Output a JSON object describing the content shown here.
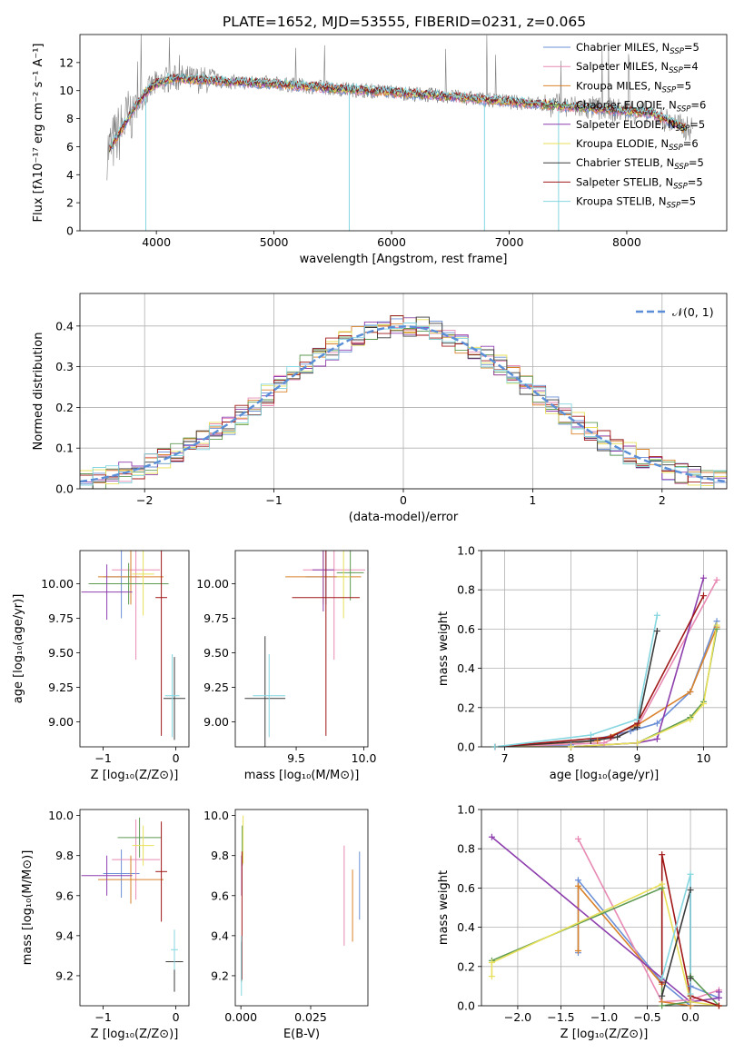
{
  "title": "PLATE=1652, MJD=53555, FIBERID=0231, z=0.065",
  "colors": [
    "#6b8fd6",
    "#e88ab4",
    "#d9822b",
    "#5e9a52",
    "#8e3fae",
    "#e8e05a",
    "#3b3b3b",
    "#a01818",
    "#85d6e0"
  ],
  "chart_data": [
    {
      "id": "spectrum",
      "type": "line",
      "xlabel": "wavelength [Angstrom, rest frame]",
      "ylabel": "Flux [fλ10⁻¹⁷ erg cm⁻² s⁻¹ A⁻¹]",
      "xlim": [
        3350,
        8850
      ],
      "ylim": [
        0,
        14
      ],
      "xticks": [
        4000,
        5000,
        6000,
        7000,
        8000
      ],
      "yticks": [
        0,
        2,
        4,
        6,
        8,
        10,
        12
      ],
      "grid": false,
      "legend": "top-right",
      "legend_entries": [
        {
          "text": "Chabrier MILES, N",
          "sub": "SSP",
          "tail": "=5"
        },
        {
          "text": "Salpeter MILES, N",
          "sub": "SSP",
          "tail": "=4"
        },
        {
          "text": "Kroupa MILES, N",
          "sub": "SSP",
          "tail": "=5"
        },
        {
          "text": "Chabrier ELODIE, N",
          "sub": "SSP",
          "tail": "=6"
        },
        {
          "text": "Salpeter ELODIE, N",
          "sub": "SSP",
          "tail": "=5"
        },
        {
          "text": "Kroupa ELODIE, N",
          "sub": "SSP",
          "tail": "=6"
        },
        {
          "text": "Chabrier STELIB, N",
          "sub": "SSP",
          "tail": "=5"
        },
        {
          "text": "Salpeter STELIB, N",
          "sub": "SSP",
          "tail": "=5"
        },
        {
          "text": "Kroupa STELIB, N",
          "sub": "SSP",
          "tail": "=5"
        }
      ],
      "continuum_x": [
        3600,
        3700,
        3800,
        3900,
        4000,
        4100,
        4200,
        4300,
        4500,
        4700,
        5000,
        5300,
        5600,
        6000,
        6300,
        6600,
        7000,
        7300,
        7600,
        7900,
        8200,
        8500
      ],
      "continuum_y": [
        5.8,
        7.2,
        8.6,
        9.8,
        10.5,
        10.8,
        10.9,
        10.8,
        10.7,
        10.6,
        10.5,
        10.3,
        10.1,
        9.9,
        9.7,
        9.5,
        9.2,
        9.0,
        8.8,
        8.6,
        8.4,
        7.3
      ],
      "spikes": [
        {
          "x": 3910,
          "y": 0
        },
        {
          "x": 5640,
          "y": 0
        },
        {
          "x": 6790,
          "y": 0
        },
        {
          "x": 7420,
          "y": 0
        }
      ]
    },
    {
      "id": "residual-hist",
      "type": "line",
      "xlabel": "(data-model)/error",
      "ylabel": "Normed distribution",
      "xlim": [
        -2.5,
        2.5
      ],
      "ylim": [
        0,
        0.48
      ],
      "xticks": [
        -2,
        -1,
        0,
        1,
        2
      ],
      "yticks": [
        0.0,
        0.1,
        0.2,
        0.3,
        0.4
      ],
      "grid": true,
      "legend": "top-right",
      "legend_label": "𝒩(0, 1)",
      "gaussian": {
        "mean": 0,
        "sigma": 1
      }
    },
    {
      "id": "age-vs-Z",
      "type": "scatter",
      "xlabel": "Z [log₁₀(Z/Z⊙)]",
      "ylabel": "age  [log₁₀(age/yr)]",
      "xlim": [
        -1.32,
        0.18
      ],
      "ylim": [
        8.82,
        10.24
      ],
      "xticks": [
        -1,
        0
      ],
      "yticks": [
        9.0,
        9.25,
        9.5,
        9.75,
        10.0
      ],
      "grid": false,
      "points": [
        {
          "c": 0,
          "x": -0.75,
          "y": 10.05,
          "xe": 0.25,
          "ye": 0.3
        },
        {
          "c": 1,
          "x": -0.55,
          "y": 10.1,
          "xe": 0.33,
          "ye": 0.65
        },
        {
          "c": 2,
          "x": -0.62,
          "y": 10.05,
          "xe": 0.45,
          "ye": 0.2
        },
        {
          "c": 3,
          "x": -0.65,
          "y": 10.0,
          "xe": 0.55,
          "ye": 0.15
        },
        {
          "c": 4,
          "x": -0.95,
          "y": 9.94,
          "xe": 0.35,
          "ye": 0.2
        },
        {
          "c": 5,
          "x": -0.45,
          "y": 10.07,
          "xe": 0.15,
          "ye": 0.3
        },
        {
          "c": 6,
          "x": -0.02,
          "y": 9.17,
          "xe": 0.15,
          "ye": 0.3
        },
        {
          "c": 7,
          "x": -0.2,
          "y": 9.9,
          "xe": 0.08,
          "ye": 1.0
        },
        {
          "c": 8,
          "x": -0.05,
          "y": 9.19,
          "xe": 0.1,
          "ye": 0.3
        }
      ]
    },
    {
      "id": "age-vs-mass",
      "type": "scatter",
      "xlabel": "mass [log₁₀(M/M⊙)]",
      "ylabel": "",
      "xlim": [
        9.05,
        10.03
      ],
      "ylim": [
        8.82,
        10.24
      ],
      "xticks": [
        9.5,
        10.0
      ],
      "yticks": [
        9.0,
        9.25,
        9.5,
        9.75,
        10.0
      ],
      "grid": false,
      "points": [
        {
          "c": 0,
          "x": 9.72,
          "y": 10.05,
          "xe": 0.15,
          "ye": 0.2
        },
        {
          "c": 1,
          "x": 9.78,
          "y": 10.1,
          "xe": 0.23,
          "ye": 0.65
        },
        {
          "c": 2,
          "x": 9.7,
          "y": 10.05,
          "xe": 0.28,
          "ye": 0.2
        },
        {
          "c": 3,
          "x": 9.9,
          "y": 10.08,
          "xe": 0.1,
          "ye": 0.2
        },
        {
          "c": 4,
          "x": 9.7,
          "y": 10.1,
          "xe": 0.08,
          "ye": 0.3
        },
        {
          "c": 5,
          "x": 9.85,
          "y": 10.05,
          "xe": 0.05,
          "ye": 0.3
        },
        {
          "c": 6,
          "x": 9.27,
          "y": 9.17,
          "xe": 0.15,
          "ye": 0.45
        },
        {
          "c": 7,
          "x": 9.72,
          "y": 9.9,
          "xe": 0.25,
          "ye": 1.0
        },
        {
          "c": 8,
          "x": 9.3,
          "y": 9.19,
          "xe": 0.12,
          "ye": 0.3
        }
      ]
    },
    {
      "id": "weight-vs-age",
      "type": "line",
      "xlabel": "age  [log₁₀(age/yr)]",
      "ylabel": "mass weight",
      "xlim": [
        6.65,
        10.35
      ],
      "ylim": [
        0,
        1.0
      ],
      "xticks": [
        7,
        8,
        9,
        10
      ],
      "yticks": [
        0.0,
        0.2,
        0.4,
        0.6,
        0.8,
        1.0
      ],
      "grid": true,
      "series": [
        {
          "c": 0,
          "x": [
            6.85,
            8.0,
            8.9,
            9.3,
            9.8,
            10.2
          ],
          "y": [
            0.0,
            0.01,
            0.08,
            0.12,
            0.28,
            0.64
          ]
        },
        {
          "c": 1,
          "x": [
            6.85,
            8.5,
            9.0,
            10.2
          ],
          "y": [
            0.0,
            0.02,
            0.1,
            0.85
          ]
        },
        {
          "c": 2,
          "x": [
            6.85,
            8.4,
            9.0,
            9.8,
            10.2
          ],
          "y": [
            0.0,
            0.03,
            0.11,
            0.28,
            0.61
          ]
        },
        {
          "c": 3,
          "x": [
            6.85,
            8.0,
            9.0,
            9.8,
            10.0,
            10.2
          ],
          "y": [
            0.0,
            0.0,
            0.02,
            0.15,
            0.23,
            0.6
          ]
        },
        {
          "c": 4,
          "x": [
            6.85,
            8.0,
            9.0,
            9.3,
            10.0
          ],
          "y": [
            0.0,
            0.0,
            0.02,
            0.04,
            0.86
          ]
        },
        {
          "c": 5,
          "x": [
            6.85,
            8.0,
            9.0,
            9.8,
            10.0,
            10.2
          ],
          "y": [
            0.0,
            0.0,
            0.02,
            0.14,
            0.22,
            0.62
          ]
        },
        {
          "c": 6,
          "x": [
            6.85,
            8.3,
            8.7,
            9.0,
            9.3
          ],
          "y": [
            0.0,
            0.03,
            0.05,
            0.1,
            0.59
          ]
        },
        {
          "c": 7,
          "x": [
            6.85,
            8.6,
            9.0,
            10.0
          ],
          "y": [
            0.0,
            0.05,
            0.12,
            0.77
          ]
        },
        {
          "c": 8,
          "x": [
            6.85,
            8.3,
            9.0,
            9.3
          ],
          "y": [
            0.0,
            0.06,
            0.14,
            0.67
          ]
        }
      ]
    },
    {
      "id": "mass-vs-Z",
      "type": "scatter",
      "xlabel": "Z [log₁₀(Z/Z⊙)]",
      "ylabel": "mass [log₁₀(M/M⊙)]",
      "xlim": [
        -1.32,
        0.18
      ],
      "ylim": [
        9.05,
        10.03
      ],
      "xticks": [
        -1,
        0
      ],
      "yticks": [
        9.2,
        9.4,
        9.6,
        9.8,
        10.0
      ],
      "grid": false,
      "points": [
        {
          "c": 0,
          "x": -0.75,
          "y": 9.71,
          "xe": 0.25,
          "ye": 0.12
        },
        {
          "c": 1,
          "x": -0.55,
          "y": 9.78,
          "xe": 0.33,
          "ye": 0.2
        },
        {
          "c": 2,
          "x": -0.62,
          "y": 9.68,
          "xe": 0.45,
          "ye": 0.12
        },
        {
          "c": 3,
          "x": -0.5,
          "y": 9.89,
          "xe": 0.3,
          "ye": 0.1
        },
        {
          "c": 4,
          "x": -0.95,
          "y": 9.7,
          "xe": 0.35,
          "ye": 0.1
        },
        {
          "c": 5,
          "x": -0.45,
          "y": 9.85,
          "xe": 0.15,
          "ye": 0.1
        },
        {
          "c": 6,
          "x": -0.02,
          "y": 9.27,
          "xe": 0.12,
          "ye": 0.15
        },
        {
          "c": 7,
          "x": -0.2,
          "y": 9.72,
          "xe": 0.08,
          "ye": 0.25
        },
        {
          "c": 8,
          "x": -0.02,
          "y": 9.33,
          "xe": 0.05,
          "ye": 0.1
        }
      ]
    },
    {
      "id": "mass-vs-EBV",
      "type": "scatter",
      "xlabel": "E(B-V)",
      "ylabel": "",
      "xlim": [
        -0.002,
        0.0455
      ],
      "ylim": [
        9.05,
        10.03
      ],
      "xticks": [
        0.0,
        0.025
      ],
      "yticks": [
        9.2,
        9.4,
        9.6,
        9.8,
        10.0
      ],
      "grid": false,
      "points": [
        {
          "c": 0,
          "x": 0.0425,
          "y": 9.65,
          "xe": 0,
          "ye": 0.17
        },
        {
          "c": 1,
          "x": 0.037,
          "y": 9.6,
          "xe": 0,
          "ye": 0.25
        },
        {
          "c": 2,
          "x": 0.04,
          "y": 9.55,
          "xe": 0,
          "ye": 0.18
        },
        {
          "c": 3,
          "x": 0.0005,
          "y": 9.85,
          "xe": 0,
          "ye": 0.1
        },
        {
          "c": 4,
          "x": 0.0003,
          "y": 9.7,
          "xe": 0,
          "ye": 0.1
        },
        {
          "c": 5,
          "x": 0.0008,
          "y": 9.88,
          "xe": 0,
          "ye": 0.12
        },
        {
          "c": 6,
          "x": 0.0002,
          "y": 9.27,
          "xe": 0,
          "ye": 0.1
        },
        {
          "c": 7,
          "x": 0.0004,
          "y": 9.5,
          "xe": 0,
          "ye": 0.32
        },
        {
          "c": 8,
          "x": 0.0002,
          "y": 9.25,
          "xe": 0,
          "ye": 0.15
        }
      ]
    },
    {
      "id": "weight-vs-Z",
      "type": "line",
      "xlabel": "Z [log₁₀(Z/Z⊙)]",
      "ylabel": "mass weight",
      "xlim": [
        -2.42,
        0.42
      ],
      "ylim": [
        0,
        1.0
      ],
      "xticks": [
        -2.0,
        -1.5,
        -1.0,
        -0.5,
        0.0
      ],
      "yticks": [
        0.0,
        0.2,
        0.4,
        0.6,
        0.8,
        1.0
      ],
      "grid": true,
      "series": [
        {
          "c": 0,
          "x": [
            -1.3,
            -1.3,
            -0.33,
            0.0,
            0.0,
            0.33
          ],
          "y": [
            0.27,
            0.64,
            0.12,
            0.0,
            0.1,
            0.04
          ]
        },
        {
          "c": 1,
          "x": [
            -1.3,
            -0.33,
            0.0,
            0.33
          ],
          "y": [
            0.85,
            0.02,
            0.03,
            0.08
          ]
        },
        {
          "c": 2,
          "x": [
            -1.3,
            -1.3,
            -0.33,
            -0.33,
            0.0,
            0.33
          ],
          "y": [
            0.28,
            0.61,
            0.11,
            0.02,
            0.0,
            0.0
          ]
        },
        {
          "c": 3,
          "x": [
            -2.3,
            -0.33,
            -0.33,
            0.0,
            0.0,
            0.33
          ],
          "y": [
            0.23,
            0.6,
            0.0,
            0.02,
            0.15,
            0.0
          ]
        },
        {
          "c": 4,
          "x": [
            -2.3,
            0.0,
            0.33,
            0.33
          ],
          "y": [
            0.86,
            0.02,
            0.04,
            0.07
          ]
        },
        {
          "c": 5,
          "x": [
            -2.3,
            -2.3,
            -0.33,
            0.0,
            0.33
          ],
          "y": [
            0.15,
            0.22,
            0.62,
            0.02,
            0.0
          ]
        },
        {
          "c": 6,
          "x": [
            -0.33,
            0.0,
            0.0
          ],
          "y": [
            0.05,
            0.59,
            0.14
          ]
        },
        {
          "c": 7,
          "x": [
            -0.33,
            -0.33,
            0.0,
            0.33
          ],
          "y": [
            0.12,
            0.77,
            0.05,
            0.0
          ]
        },
        {
          "c": 8,
          "x": [
            -0.33,
            0.0,
            0.0
          ],
          "y": [
            0.14,
            0.67,
            0.06
          ]
        }
      ]
    }
  ]
}
